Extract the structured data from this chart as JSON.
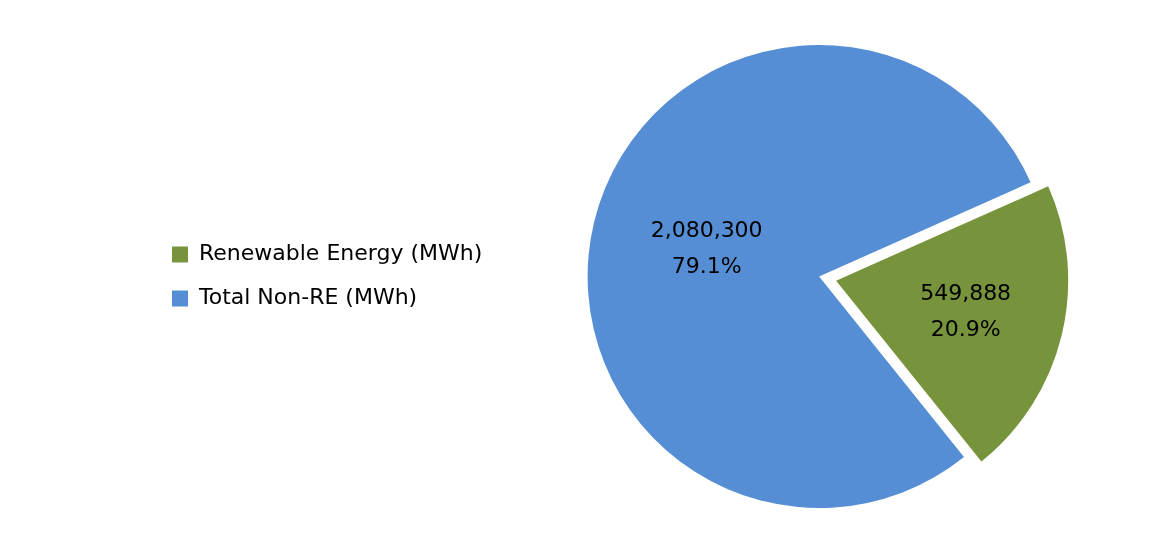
{
  "chart_data": {
    "type": "pie",
    "categories": [
      "Renewable Energy (MWh)",
      "Total Non-RE (MWh)"
    ],
    "values": [
      549888,
      2080300
    ],
    "colors": [
      "#77933c",
      "#558ed5"
    ],
    "value_labels": [
      "549,888\n20.9%",
      "2,080,300\n79.1%"
    ],
    "legend": "left"
  }
}
